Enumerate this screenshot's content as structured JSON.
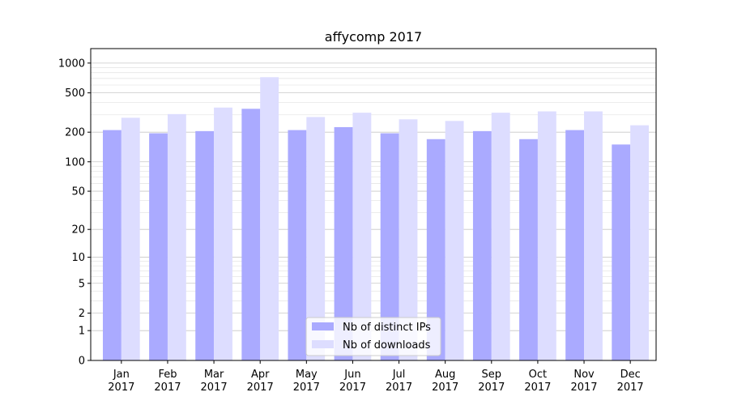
{
  "chart_data": {
    "type": "bar",
    "title": "affycomp 2017",
    "xlabel": "",
    "ylabel": "",
    "y_scale": "log(1+y)",
    "ylim": [
      0,
      1400
    ],
    "y_ticks": [
      {
        "value": 0,
        "label": "0"
      },
      {
        "value": 1,
        "label": "1"
      },
      {
        "value": 2,
        "label": "2"
      },
      {
        "value": 5,
        "label": "5"
      },
      {
        "value": 10,
        "label": "10"
      },
      {
        "value": 20,
        "label": "20"
      },
      {
        "value": 50,
        "label": "50"
      },
      {
        "value": 100,
        "label": "100"
      },
      {
        "value": 200,
        "label": "200"
      },
      {
        "value": 500,
        "label": "500"
      },
      {
        "value": 1000,
        "label": "1000"
      }
    ],
    "y_minor_ticks": [
      3,
      4,
      6,
      7,
      8,
      9,
      30,
      40,
      60,
      70,
      80,
      90,
      300,
      400,
      600,
      700,
      800,
      900
    ],
    "grid": true,
    "legend_position": "bottom-center",
    "categories": [
      {
        "month": "Jan",
        "year": "2017"
      },
      {
        "month": "Feb",
        "year": "2017"
      },
      {
        "month": "Mar",
        "year": "2017"
      },
      {
        "month": "Apr",
        "year": "2017"
      },
      {
        "month": "May",
        "year": "2017"
      },
      {
        "month": "Jun",
        "year": "2017"
      },
      {
        "month": "Jul",
        "year": "2017"
      },
      {
        "month": "Aug",
        "year": "2017"
      },
      {
        "month": "Sep",
        "year": "2017"
      },
      {
        "month": "Oct",
        "year": "2017"
      },
      {
        "month": "Nov",
        "year": "2017"
      },
      {
        "month": "Dec",
        "year": "2017"
      }
    ],
    "series": [
      {
        "name": "Nb of distinct IPs",
        "color": "#aaaaff",
        "values": [
          210,
          195,
          205,
          345,
          210,
          225,
          195,
          170,
          205,
          170,
          210,
          150
        ]
      },
      {
        "name": "Nb of downloads",
        "color": "#ddddff",
        "values": [
          280,
          305,
          355,
          720,
          285,
          315,
          270,
          260,
          315,
          325,
          325,
          235
        ]
      }
    ]
  }
}
